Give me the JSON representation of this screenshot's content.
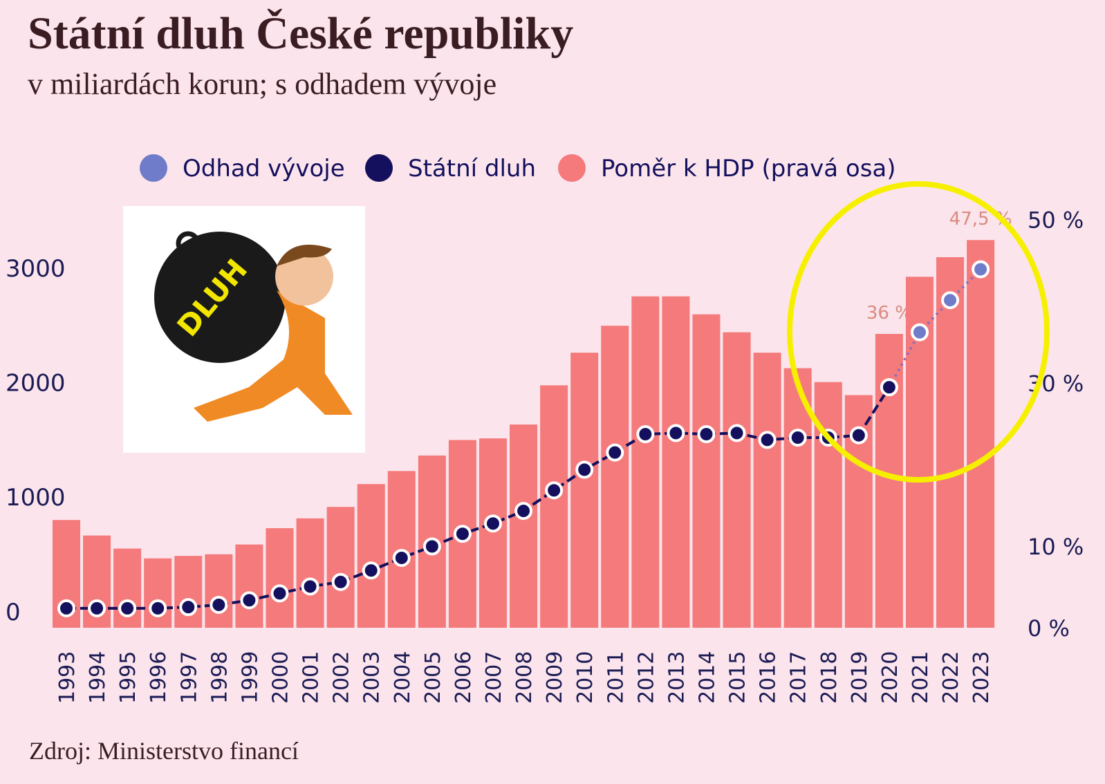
{
  "chart_data": {
    "type": "combo",
    "title": "Státní dluh České republiky",
    "subtitle": "v miliardách korun; s odhadem vývoje",
    "source": "Zdroj: Ministerstvo financí",
    "illustration_text": "DLUH",
    "categories": [
      "1993",
      "1994",
      "1995",
      "1996",
      "1997",
      "1998",
      "1999",
      "2000",
      "2001",
      "2002",
      "2003",
      "2004",
      "2005",
      "2006",
      "2007",
      "2008",
      "2009",
      "2010",
      "2011",
      "2012",
      "2013",
      "2014",
      "2015",
      "2016",
      "2017",
      "2018",
      "2019",
      "2020",
      "2021",
      "2022",
      "2023"
    ],
    "series": [
      {
        "name": "Odhad vývoje",
        "type": "line",
        "dotted": true,
        "color": "#6f7cc9",
        "values": [
          null,
          null,
          null,
          null,
          null,
          null,
          null,
          null,
          null,
          null,
          null,
          null,
          null,
          null,
          null,
          null,
          null,
          null,
          null,
          null,
          null,
          null,
          null,
          null,
          null,
          null,
          null,
          1960,
          2440,
          2720,
          2990
        ]
      },
      {
        "name": "Státní dluh",
        "type": "line",
        "color": "#14105e",
        "values": [
          30,
          30,
          30,
          30,
          40,
          60,
          100,
          160,
          220,
          260,
          360,
          470,
          570,
          680,
          770,
          880,
          1060,
          1240,
          1390,
          1550,
          1560,
          1550,
          1560,
          1500,
          1520,
          1520,
          1540,
          1960,
          null,
          null,
          null
        ]
      },
      {
        "name": "Poměr k HDP (pravá osa)",
        "type": "bar",
        "axis": "y2",
        "color": "#f57a7b",
        "values": [
          13.2,
          11.3,
          9.7,
          8.5,
          8.8,
          9.0,
          10.2,
          12.2,
          13.4,
          14.8,
          17.6,
          19.2,
          21.1,
          23.0,
          23.2,
          24.9,
          29.7,
          33.7,
          37.0,
          40.6,
          40.6,
          38.4,
          36.2,
          33.7,
          31.8,
          30.1,
          28.5,
          36,
          43.0,
          45.4,
          47.5
        ],
        "value_labels": [
          null,
          null,
          null,
          null,
          null,
          null,
          null,
          null,
          null,
          null,
          null,
          null,
          null,
          null,
          null,
          null,
          null,
          null,
          null,
          null,
          null,
          null,
          null,
          null,
          null,
          null,
          null,
          "36 %",
          null,
          null,
          "47,5 %"
        ]
      }
    ],
    "ylim": [
      -140,
      3530
    ],
    "yticks": [
      0,
      1000,
      2000,
      3000
    ],
    "y2lim": [
      0,
      51.5
    ],
    "y2ticks": [
      {
        "value": 0,
        "label": "0 %"
      },
      {
        "value": 10,
        "label": "10 %"
      },
      {
        "value": 30,
        "label": "30 %"
      },
      {
        "value": 50,
        "label": "50 %"
      }
    ]
  }
}
